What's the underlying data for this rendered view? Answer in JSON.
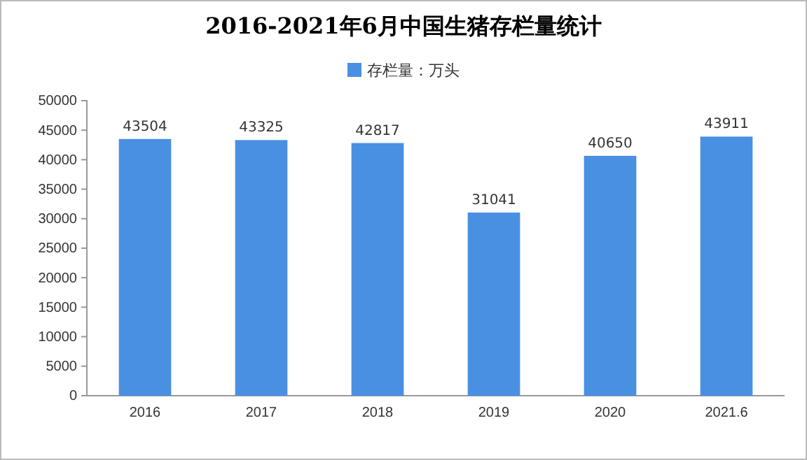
{
  "chart_data": {
    "type": "bar",
    "title": "2016-2021年6月中国生猪存栏量统计",
    "categories": [
      "2016",
      "2017",
      "2018",
      "2019",
      "2020",
      "2021.6"
    ],
    "series": [
      {
        "name": "存栏量：万头",
        "color": "#4a90e2",
        "values": [
          43504,
          43325,
          42817,
          31041,
          40650,
          43911
        ]
      }
    ],
    "ylim": [
      0,
      50000
    ],
    "yticks": [
      0,
      5000,
      10000,
      15000,
      20000,
      25000,
      30000,
      35000,
      40000,
      45000,
      50000
    ],
    "data_labels": true,
    "legend": "top",
    "grid": false
  }
}
